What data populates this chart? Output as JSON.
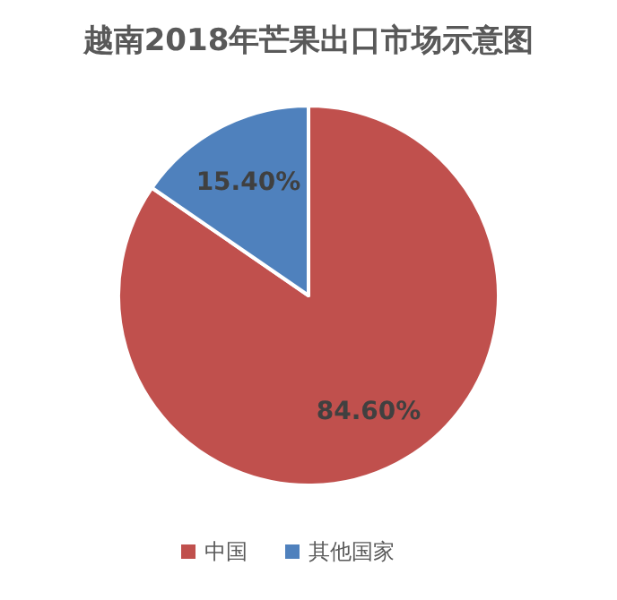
{
  "chart_data": {
    "type": "pie",
    "title": "越南2018年芒果出口市场示意图",
    "categories": [
      "中国",
      "其他国家"
    ],
    "values": [
      84.6,
      15.4
    ],
    "colors": [
      "#c0504d",
      "#4f81bd"
    ],
    "value_labels": [
      "84.60%",
      "15.40%"
    ],
    "legend": "bottom"
  }
}
